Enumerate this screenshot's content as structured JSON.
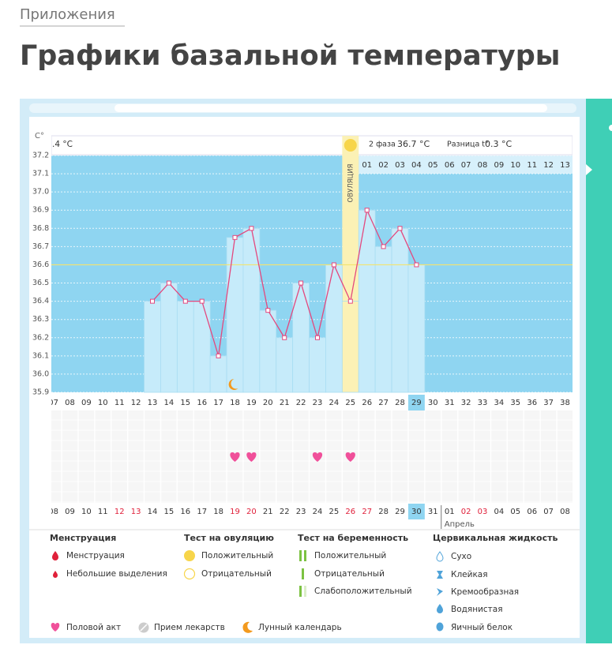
{
  "breadcrumb": "Приложения",
  "heading": "Графики базальной температуры",
  "chart_data": {
    "type": "bar-line",
    "y_label": "C°",
    "categories": [
      "07",
      "08",
      "09",
      "10",
      "11",
      "12",
      "13",
      "14",
      "15",
      "16",
      "17",
      "18",
      "19",
      "20",
      "21",
      "22",
      "23",
      "24",
      "25",
      "26",
      "27",
      "28",
      "29",
      "30",
      "31",
      "32",
      "33",
      "34",
      "35",
      "36",
      "37",
      "38"
    ],
    "values": [
      null,
      null,
      null,
      null,
      null,
      null,
      36.4,
      36.5,
      36.4,
      36.4,
      36.1,
      36.75,
      36.8,
      36.35,
      36.2,
      36.5,
      36.2,
      36.6,
      36.4,
      36.9,
      36.7,
      36.8,
      36.6,
      null,
      null,
      null,
      null,
      null,
      null,
      null,
      null,
      null
    ],
    "ylim": [
      35.9,
      37.2
    ],
    "yticks": [
      35.9,
      {
        "value": 36,
        "label": "36.0"
      },
      36.1,
      36.2,
      36.3,
      36.4,
      36.5,
      36.6,
      36.7,
      36.8,
      36.9,
      {
        "value": 37,
        "label": "37.0"
      },
      37.1,
      37.2
    ],
    "grid": true,
    "cover_line": 36.6,
    "phase1_text": ".4 °C",
    "phase2_label": "2 фаза",
    "phase2_temp": "36.7 °C",
    "difference_label": "Разница t°",
    "difference_value": "0.3 °C",
    "ovulation_day": "25",
    "ovulation_label": "ОВУЛЯЦИЯ",
    "phase2_days": [
      "01",
      "02",
      "03",
      "04",
      "05",
      "06",
      "07",
      "08",
      "09",
      "10",
      "11",
      "12",
      "13"
    ],
    "today_day": "29",
    "dates": [
      "08",
      "09",
      "10",
      "11",
      "12",
      "13",
      "14",
      "15",
      "16",
      "17",
      "18",
      "19",
      "20",
      "21",
      "22",
      "23",
      "24",
      "25",
      "26",
      "27",
      "28",
      "29",
      "30",
      "31",
      "01",
      "02",
      "03",
      "04",
      "05",
      "06",
      "07",
      "08"
    ],
    "date_colors": [
      "#333",
      "#333",
      "#333",
      "#333",
      "#e0203a",
      "#e0203a",
      "#333",
      "#333",
      "#333",
      "#333",
      "#333",
      "#e0203a",
      "#e0203a",
      "#333",
      "#333",
      "#333",
      "#333",
      "#333",
      "#e0203a",
      "#e0203a",
      "#333",
      "#333",
      "#333",
      "#333",
      "#333",
      "#e0203a",
      "#e0203a",
      "#333",
      "#333",
      "#333",
      "#333",
      "#333"
    ],
    "today_date_index": 22,
    "month_label": "Апрель",
    "intercourse_days": [
      "18",
      "19",
      "23",
      "25"
    ],
    "moon_days": [
      "18"
    ],
    "bar_color": "#c6ebfa",
    "line_color": "#e4487e",
    "plot_color": "#8fd5f1"
  },
  "legend": {
    "groups": [
      {
        "title": "Менструация",
        "items": [
          "Менструация",
          "Небольшие выделения"
        ]
      },
      {
        "title": "Тест на овуляцию",
        "items": [
          "Положительный",
          "Отрицательный"
        ]
      },
      {
        "title": "Тест на беременность",
        "items": [
          "Положительный",
          "Отрицательный",
          "Слабоположительный"
        ]
      },
      {
        "title": "Цервикальная жидкость",
        "items": [
          "Сухо",
          "Клейкая",
          "Кремообразная",
          "Водянистая",
          "Яичный белок"
        ]
      }
    ],
    "extras": [
      "Половой акт",
      "Прием лекарств",
      "Лунный календарь"
    ]
  }
}
